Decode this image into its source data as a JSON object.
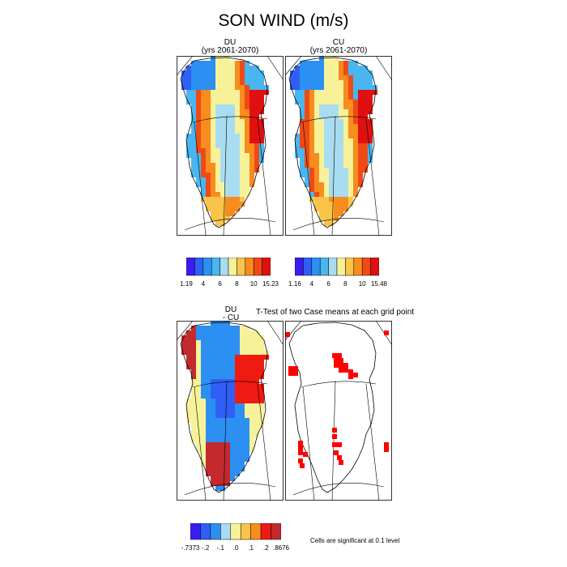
{
  "chart_data": {
    "type": "heatmap",
    "title": "SON WIND (m/s)",
    "panels": [
      {
        "title_line1": "DU",
        "title_line2": "(yrs 2061-2070)",
        "min": 1.19,
        "max": 15.23,
        "colorbar_ticks": [
          "1.19",
          "4",
          "6",
          "8",
          "10",
          "15.23"
        ]
      },
      {
        "title_line1": "CU",
        "title_line2": "(yrs 2061-2070)",
        "min": 1.16,
        "max": 15.48,
        "colorbar_ticks": [
          "1.16",
          "4",
          "6",
          "8",
          "10",
          "15.48"
        ]
      },
      {
        "title_line1": "DU",
        "title_line2": "- CU",
        "min": -0.7373,
        "max": 0.8676,
        "colorbar_ticks": [
          "-.7373",
          "-.2",
          "-.1",
          ".0",
          ".1",
          ".2",
          ".8676"
        ]
      },
      {
        "title": "T-Test of two Case means at each grid point",
        "note": "Cells are significant at 0.1 level"
      }
    ],
    "colors_wind": [
      "#3a1cf0",
      "#2f5ff5",
      "#2c8ff2",
      "#49b6f0",
      "#a8dcf0",
      "#f7f29a",
      "#f8c44a",
      "#f88c1d",
      "#ef4a16",
      "#e01010",
      "#c22a2e"
    ],
    "colors_diff": [
      "#3a1cf0",
      "#2f5ff5",
      "#2c8ff2",
      "#a8dcf0",
      "#f7f29a",
      "#f8c44a",
      "#f88c1d",
      "#ef1a12",
      "#c22a2e"
    ],
    "significant_color": "#ff0000"
  }
}
